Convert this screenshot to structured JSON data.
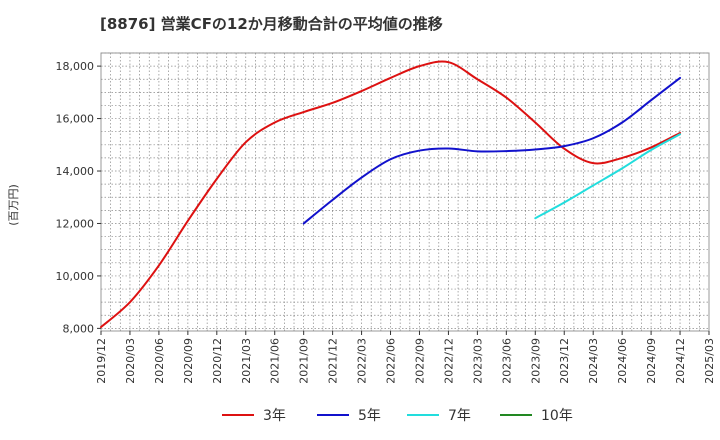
{
  "chart_data": {
    "type": "line",
    "title": "[8876]  営業CFの12か月移動合計の平均値の推移",
    "ylabel": "(百万円)",
    "xlabel": "",
    "ylim": [
      7900,
      18500
    ],
    "y_ticks": [
      8000,
      10000,
      12000,
      14000,
      16000,
      18000
    ],
    "y_tick_labels": [
      "8,000",
      "10,000",
      "12,000",
      "14,000",
      "16,000",
      "18,000"
    ],
    "x_tick_labels": [
      "2019/12",
      "2020/03",
      "2020/06",
      "2020/09",
      "2020/12",
      "2021/03",
      "2021/06",
      "2021/09",
      "2021/12",
      "2022/03",
      "2022/06",
      "2022/09",
      "2022/12",
      "2023/03",
      "2023/06",
      "2023/09",
      "2023/12",
      "2024/03",
      "2024/06",
      "2024/09",
      "2024/12",
      "2025/03"
    ],
    "grid": true,
    "legend_position": "bottom",
    "series": [
      {
        "name": "3年",
        "color": "#dd1111",
        "values": [
          [
            "2019/12",
            8050
          ],
          [
            "2020/03",
            9000
          ],
          [
            "2020/06",
            10400
          ],
          [
            "2020/09",
            12100
          ],
          [
            "2020/12",
            13700
          ],
          [
            "2021/03",
            15100
          ],
          [
            "2021/06",
            15850
          ],
          [
            "2021/09",
            16250
          ],
          [
            "2021/12",
            16600
          ],
          [
            "2022/03",
            17050
          ],
          [
            "2022/06",
            17550
          ],
          [
            "2022/09",
            18000
          ],
          [
            "2022/12",
            18150
          ],
          [
            "2023/03",
            17500
          ],
          [
            "2023/06",
            16800
          ],
          [
            "2023/09",
            15850
          ],
          [
            "2023/12",
            14850
          ],
          [
            "2024/03",
            14300
          ],
          [
            "2024/06",
            14500
          ],
          [
            "2024/09",
            14900
          ],
          [
            "2024/12",
            15450
          ]
        ]
      },
      {
        "name": "5年",
        "color": "#1111cc",
        "values": [
          [
            "2021/09",
            12000
          ],
          [
            "2021/12",
            12900
          ],
          [
            "2022/03",
            13750
          ],
          [
            "2022/06",
            14450
          ],
          [
            "2022/09",
            14780
          ],
          [
            "2022/12",
            14860
          ],
          [
            "2023/03",
            14750
          ],
          [
            "2023/06",
            14760
          ],
          [
            "2023/09",
            14820
          ],
          [
            "2023/12",
            14950
          ],
          [
            "2024/03",
            15250
          ],
          [
            "2024/06",
            15850
          ],
          [
            "2024/09",
            16700
          ],
          [
            "2024/12",
            17550
          ]
        ]
      },
      {
        "name": "7年",
        "color": "#22dddd",
        "values": [
          [
            "2023/09",
            12200
          ],
          [
            "2023/12",
            12800
          ],
          [
            "2024/03",
            13450
          ],
          [
            "2024/06",
            14100
          ],
          [
            "2024/09",
            14800
          ],
          [
            "2024/12",
            15400
          ]
        ]
      },
      {
        "name": "10年",
        "color": "#228822",
        "values": []
      }
    ]
  }
}
